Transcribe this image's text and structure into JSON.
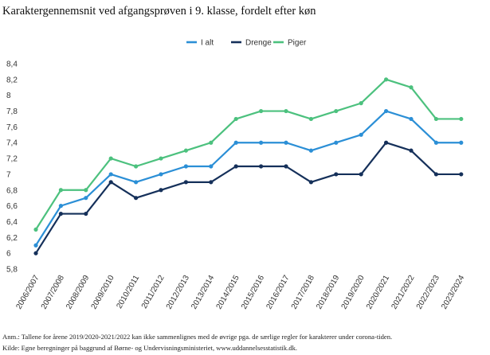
{
  "title": "Karaktergennemsnit ved afgangsprøven i 9. klasse, fordelt efter køn",
  "notes": [
    "Anm.: Tallene for årene 2019/2020-2021/2022 kan ikke sammenlignes med de øvrige pga. de særlige regler for karakterer under corona-tiden.",
    "Kilde: Egne beregninger på baggrund af Børne- og Undervisningsministeriet, www.uddannelsesstatistik.dk."
  ],
  "chart_data": {
    "type": "line",
    "title": "Karaktergennemsnit ved afgangsprøven i 9. klasse, fordelt efter køn",
    "xlabel": "",
    "ylabel": "",
    "categories": [
      "2006/2007",
      "2007/2008",
      "2008/2009",
      "2009/2010",
      "2010/2011",
      "2011/2012",
      "2012/2013",
      "2013/2014",
      "2014/2015",
      "2015/2016",
      "2016/2017",
      "2017/2018",
      "2018/2019",
      "2019/2020",
      "2020/2021",
      "2021/2022",
      "2022/2023",
      "2023/2024"
    ],
    "ylim": [
      5.8,
      8.4
    ],
    "yticks": [
      "5,8",
      "6",
      "6,2",
      "6,4",
      "6,6",
      "6,8",
      "7",
      "7,2",
      "7,4",
      "7,6",
      "7,8",
      "8",
      "8,2",
      "8,4"
    ],
    "grid": false,
    "legend_position": "top-right",
    "series": [
      {
        "name": "I alt",
        "color": "#2b8fd6",
        "values": [
          6.1,
          6.6,
          6.7,
          7.0,
          6.9,
          7.0,
          7.1,
          7.1,
          7.4,
          7.4,
          7.4,
          7.3,
          7.4,
          7.5,
          7.8,
          7.7,
          7.4,
          7.4
        ]
      },
      {
        "name": "Drenge",
        "color": "#15305a",
        "values": [
          6.0,
          6.5,
          6.5,
          6.9,
          6.7,
          6.8,
          6.9,
          6.9,
          7.1,
          7.1,
          7.1,
          6.9,
          7.0,
          7.0,
          7.4,
          7.3,
          7.0,
          7.0
        ]
      },
      {
        "name": "Piger",
        "color": "#4cc17e",
        "values": [
          6.3,
          6.8,
          6.8,
          7.2,
          7.1,
          7.2,
          7.3,
          7.4,
          7.7,
          7.8,
          7.8,
          7.7,
          7.8,
          7.9,
          8.2,
          8.1,
          7.7,
          7.7
        ]
      }
    ]
  }
}
